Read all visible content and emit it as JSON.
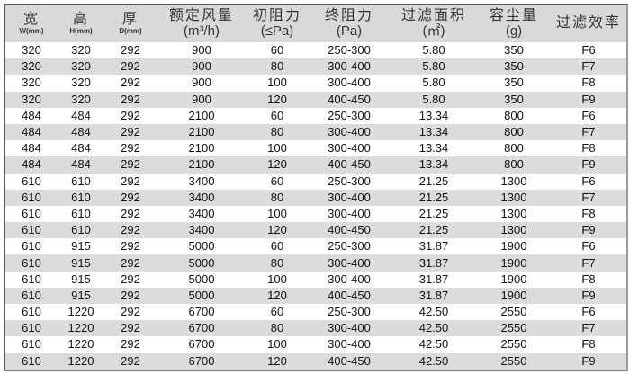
{
  "headers": [
    {
      "zh": "宽",
      "unit": "W(mm)"
    },
    {
      "zh": "高",
      "unit": "H(mm)"
    },
    {
      "zh": "厚",
      "unit": "D(mm)"
    },
    {
      "zh": "额定风量",
      "unit": "(m³/h)"
    },
    {
      "zh": "初阻力",
      "unit": "(≤Pa)"
    },
    {
      "zh": "终阻力",
      "unit": "(Pa)"
    },
    {
      "zh": "过滤面积",
      "unit": "(㎡)"
    },
    {
      "zh": "容尘量",
      "unit": "(g)"
    },
    {
      "zh": "过滤效率",
      "unit": ""
    }
  ],
  "rows": [
    [
      "320",
      "320",
      "292",
      "900",
      "60",
      "250-300",
      "5.80",
      "350",
      "F6"
    ],
    [
      "320",
      "320",
      "292",
      "900",
      "80",
      "300-400",
      "5.80",
      "350",
      "F7"
    ],
    [
      "320",
      "320",
      "292",
      "900",
      "100",
      "300-400",
      "5.80",
      "350",
      "F8"
    ],
    [
      "320",
      "320",
      "292",
      "900",
      "120",
      "400-450",
      "5.80",
      "350",
      "F9"
    ],
    [
      "484",
      "484",
      "292",
      "2100",
      "60",
      "250-300",
      "13.34",
      "800",
      "F6"
    ],
    [
      "484",
      "484",
      "292",
      "2100",
      "80",
      "300-400",
      "13.34",
      "800",
      "F7"
    ],
    [
      "484",
      "484",
      "292",
      "2100",
      "100",
      "300-400",
      "13.34",
      "800",
      "F8"
    ],
    [
      "484",
      "484",
      "292",
      "2100",
      "120",
      "400-450",
      "13.34",
      "800",
      "F9"
    ],
    [
      "610",
      "610",
      "292",
      "3400",
      "60",
      "250-300",
      "21.25",
      "1300",
      "F6"
    ],
    [
      "610",
      "610",
      "292",
      "3400",
      "80",
      "300-400",
      "21.25",
      "1300",
      "F7"
    ],
    [
      "610",
      "610",
      "292",
      "3400",
      "100",
      "300-400",
      "21.25",
      "1300",
      "F8"
    ],
    [
      "610",
      "610",
      "292",
      "3400",
      "120",
      "400-450",
      "21.25",
      "1300",
      "F9"
    ],
    [
      "610",
      "915",
      "292",
      "5000",
      "60",
      "250-300",
      "31.87",
      "1900",
      "F6"
    ],
    [
      "610",
      "915",
      "292",
      "5000",
      "80",
      "300-400",
      "31.87",
      "1900",
      "F7"
    ],
    [
      "610",
      "915",
      "292",
      "5000",
      "100",
      "300-400",
      "31.87",
      "1900",
      "F8"
    ],
    [
      "610",
      "915",
      "292",
      "5000",
      "120",
      "400-450",
      "31.87",
      "1900",
      "F9"
    ],
    [
      "610",
      "1220",
      "292",
      "6700",
      "60",
      "250-300",
      "42.50",
      "2550",
      "F6"
    ],
    [
      "610",
      "1220",
      "292",
      "6700",
      "80",
      "300-400",
      "42.50",
      "2550",
      "F7"
    ],
    [
      "610",
      "1220",
      "292",
      "6700",
      "100",
      "300-400",
      "42.50",
      "2550",
      "F8"
    ],
    [
      "610",
      "1220",
      "292",
      "6700",
      "120",
      "400-450",
      "42.50",
      "2550",
      "F9"
    ]
  ]
}
